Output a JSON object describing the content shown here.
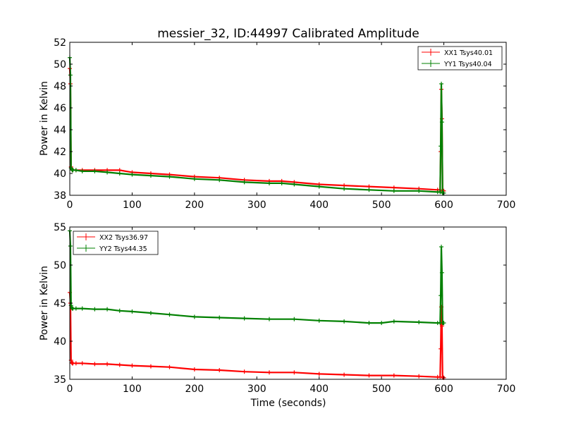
{
  "chart_data": [
    {
      "type": "line",
      "title": "messier_32, ID:44997 Calibrated Amplitude",
      "xlabel": "",
      "ylabel": "Power in Kelvin",
      "xlim": [
        0,
        700
      ],
      "ylim": [
        38,
        52
      ],
      "xticks": [
        0,
        100,
        200,
        300,
        400,
        500,
        600,
        700
      ],
      "yticks": [
        38,
        40,
        42,
        44,
        46,
        48,
        50,
        52
      ],
      "legend_position": "top-right",
      "series": [
        {
          "name": "XX1 Tsys40.01",
          "color": "#ff0000",
          "x": [
            0,
            1,
            2,
            3,
            4,
            5,
            10,
            20,
            40,
            60,
            80,
            100,
            130,
            160,
            200,
            240,
            280,
            320,
            340,
            360,
            400,
            440,
            480,
            520,
            560,
            590,
            594,
            595,
            596,
            597,
            598,
            599,
            600
          ],
          "y": [
            49.6,
            48.2,
            40.6,
            40.4,
            40.3,
            40.3,
            40.3,
            40.3,
            40.3,
            40.3,
            40.3,
            40.1,
            40.0,
            39.9,
            39.7,
            39.6,
            39.4,
            39.3,
            39.3,
            39.2,
            39.0,
            38.9,
            38.8,
            38.7,
            38.6,
            38.5,
            38.5,
            42.0,
            47.7,
            45.0,
            38.4,
            38.4,
            38.4
          ]
        },
        {
          "name": "YY1 Tsys40.04",
          "color": "#008000",
          "x": [
            0,
            1,
            2,
            3,
            4,
            5,
            10,
            20,
            40,
            60,
            80,
            100,
            130,
            160,
            200,
            240,
            280,
            320,
            340,
            360,
            400,
            440,
            480,
            520,
            560,
            590,
            594,
            595,
            596,
            597,
            598,
            599,
            600
          ],
          "y": [
            50.6,
            49.0,
            40.5,
            40.4,
            40.3,
            40.3,
            40.3,
            40.2,
            40.2,
            40.1,
            40.0,
            39.9,
            39.8,
            39.7,
            39.5,
            39.4,
            39.2,
            39.1,
            39.1,
            39.0,
            38.8,
            38.6,
            38.5,
            38.4,
            38.4,
            38.3,
            38.3,
            42.5,
            48.2,
            44.7,
            38.2,
            38.2,
            38.2
          ]
        }
      ]
    },
    {
      "type": "line",
      "title": "",
      "xlabel": "Time (seconds)",
      "ylabel": "Power in Kelvin",
      "xlim": [
        0,
        700
      ],
      "ylim": [
        35,
        55
      ],
      "xticks": [
        0,
        100,
        200,
        300,
        400,
        500,
        600,
        700
      ],
      "yticks": [
        35,
        40,
        45,
        50,
        55
      ],
      "legend_position": "top-left",
      "series": [
        {
          "name": "XX2 Tsys36.97",
          "color": "#ff0000",
          "x": [
            0,
            1,
            2,
            3,
            4,
            5,
            10,
            20,
            40,
            60,
            80,
            100,
            130,
            160,
            200,
            240,
            280,
            320,
            360,
            400,
            440,
            480,
            520,
            560,
            590,
            594,
            595,
            596,
            597,
            598,
            599,
            600
          ],
          "y": [
            46.4,
            45.0,
            37.5,
            37.2,
            37.1,
            37.1,
            37.1,
            37.1,
            37.0,
            37.0,
            36.9,
            36.8,
            36.7,
            36.6,
            36.3,
            36.2,
            36.0,
            35.9,
            35.9,
            35.7,
            35.6,
            35.5,
            35.5,
            35.4,
            35.3,
            35.3,
            39.0,
            44.5,
            42.0,
            35.3,
            35.2,
            35.2
          ]
        },
        {
          "name": "YY2 Tsys44.35",
          "color": "#008000",
          "x": [
            0,
            1,
            2,
            3,
            4,
            5,
            10,
            20,
            40,
            60,
            80,
            100,
            130,
            160,
            200,
            240,
            280,
            320,
            360,
            400,
            440,
            480,
            500,
            520,
            560,
            590,
            594,
            595,
            596,
            597,
            598,
            599,
            600
          ],
          "y": [
            54.5,
            52.5,
            44.7,
            44.4,
            44.3,
            44.3,
            44.3,
            44.3,
            44.2,
            44.2,
            44.0,
            43.9,
            43.7,
            43.5,
            43.2,
            43.1,
            43.0,
            42.9,
            42.9,
            42.7,
            42.6,
            42.4,
            42.4,
            42.6,
            42.5,
            42.4,
            42.4,
            46.0,
            52.4,
            49.0,
            42.4,
            42.4,
            42.4
          ]
        }
      ]
    }
  ]
}
